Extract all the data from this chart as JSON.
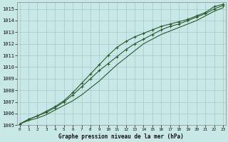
{
  "xlabel": "Graphe pression niveau de la mer (hPa)",
  "bg_color": "#c8e8e8",
  "grid_color": "#a8c8c8",
  "line_color": "#2a5a2a",
  "x": [
    0,
    1,
    2,
    3,
    4,
    5,
    6,
    7,
    8,
    9,
    10,
    11,
    12,
    13,
    14,
    15,
    16,
    17,
    18,
    19,
    20,
    21,
    22,
    23
  ],
  "line_upper": [
    1005.1,
    1005.5,
    1005.8,
    1006.2,
    1006.6,
    1007.1,
    1007.8,
    1008.6,
    1009.4,
    1010.2,
    1011.0,
    1011.7,
    1012.2,
    1012.6,
    1012.9,
    1013.2,
    1013.5,
    1013.7,
    1013.9,
    1014.1,
    1014.4,
    1014.7,
    1015.2,
    1015.4
  ],
  "line_mid": [
    1005.1,
    1005.5,
    1005.8,
    1006.1,
    1006.5,
    1007.0,
    1007.6,
    1008.3,
    1009.0,
    1009.7,
    1010.3,
    1010.9,
    1011.5,
    1012.0,
    1012.4,
    1012.8,
    1013.2,
    1013.5,
    1013.7,
    1014.0,
    1014.3,
    1014.6,
    1015.0,
    1015.3
  ],
  "line_lower": [
    1005.1,
    1005.4,
    1005.6,
    1005.9,
    1006.3,
    1006.7,
    1007.1,
    1007.6,
    1008.2,
    1008.8,
    1009.5,
    1010.2,
    1010.8,
    1011.4,
    1012.0,
    1012.4,
    1012.8,
    1013.1,
    1013.4,
    1013.7,
    1014.0,
    1014.4,
    1014.8,
    1015.1
  ],
  "ylim_min": 1005,
  "ylim_max": 1015.6,
  "yticks": [
    1005,
    1006,
    1007,
    1008,
    1009,
    1010,
    1011,
    1012,
    1013,
    1014,
    1015
  ],
  "xticks": [
    0,
    1,
    2,
    3,
    4,
    5,
    6,
    7,
    8,
    9,
    10,
    11,
    12,
    13,
    14,
    15,
    16,
    17,
    18,
    19,
    20,
    21,
    22,
    23
  ],
  "figsize": [
    3.2,
    2.0
  ],
  "dpi": 100
}
